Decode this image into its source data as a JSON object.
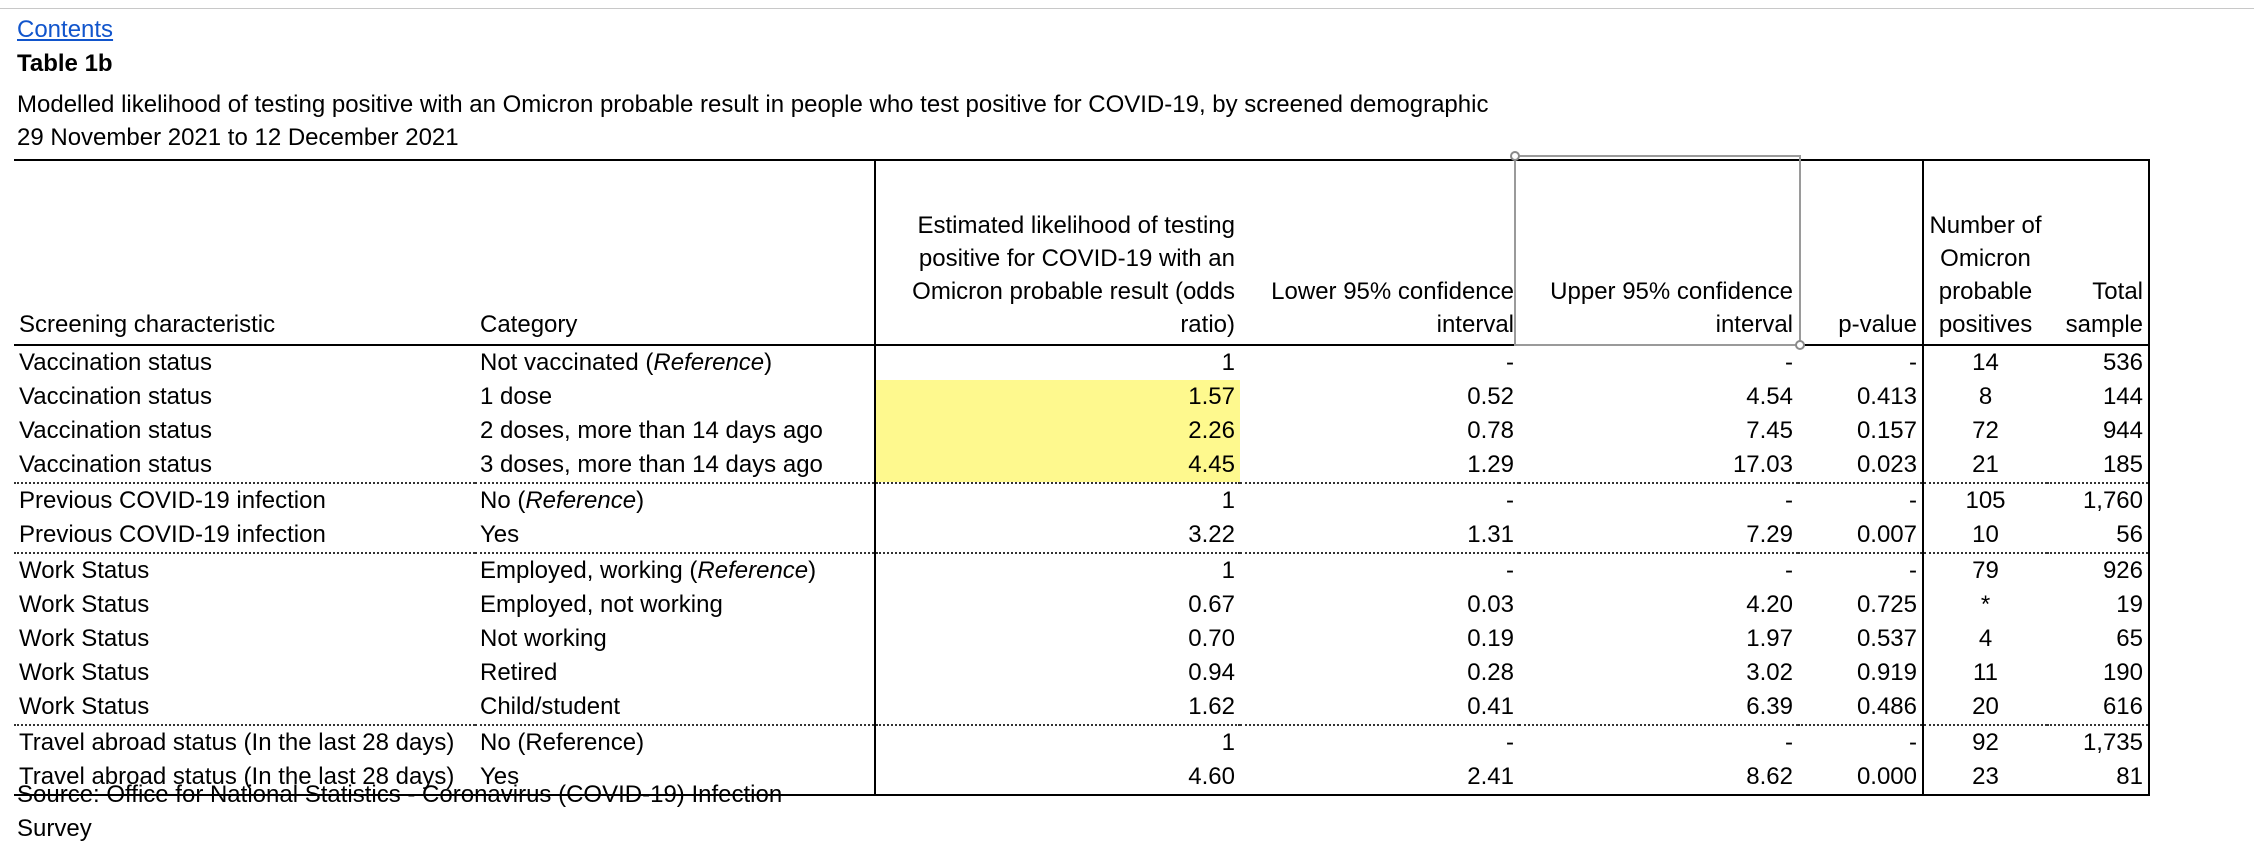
{
  "contents_link": "Contents",
  "table_title": "Table 1b",
  "description": "Modelled likelihood of testing positive with an Omicron probable result in people who test positive for COVID-19, by screened demographic",
  "period": "29 November 2021 to 12 December 2021",
  "columns": {
    "screening": "Screening characteristic",
    "category": "Category",
    "odds": "Estimated likelihood of testing positive for COVID-19 with an Omicron probable result (odds ratio)",
    "lower": "Lower 95% confidence interval",
    "upper": "Upper 95% confidence interval",
    "pvalue": "p-value",
    "positives": "Number of Omicron probable positives",
    "total": "Total sample"
  },
  "reference_label": "Reference",
  "rows": [
    {
      "screening": "Vaccination status",
      "category": "Not vaccinated (",
      "category_ref": "Reference",
      "category_end": ")",
      "odds": "1",
      "lower": "-",
      "upper": "-",
      "pvalue": "-",
      "positives": "14",
      "total": "536"
    },
    {
      "screening": "Vaccination status",
      "category": "1 dose",
      "odds": "1.57",
      "lower": "0.52",
      "upper": "4.54",
      "pvalue": "0.413",
      "positives": "8",
      "total": "144"
    },
    {
      "screening": "Vaccination status",
      "category": "2 doses, more than 14 days ago",
      "odds": "2.26",
      "lower": "0.78",
      "upper": "7.45",
      "pvalue": "0.157",
      "positives": "72",
      "total": "944"
    },
    {
      "screening": "Vaccination status",
      "category": "3 doses, more than 14 days ago",
      "odds": "4.45",
      "lower": "1.29",
      "upper": "17.03",
      "pvalue": "0.023",
      "positives": "21",
      "total": "185"
    },
    {
      "screening": "Previous COVID-19 infection",
      "category": "No (",
      "category_ref": "Reference",
      "category_end": ")",
      "odds": "1",
      "lower": "-",
      "upper": "-",
      "pvalue": "-",
      "positives": "105",
      "total": "1,760"
    },
    {
      "screening": "Previous COVID-19 infection",
      "category": "Yes",
      "odds": "3.22",
      "lower": "1.31",
      "upper": "7.29",
      "pvalue": "0.007",
      "positives": "10",
      "total": "56"
    },
    {
      "screening": "Work Status",
      "category": "Employed, working (",
      "category_ref": "Reference",
      "category_end": ")",
      "odds": "1",
      "lower": "-",
      "upper": "-",
      "pvalue": "-",
      "positives": "79",
      "total": "926"
    },
    {
      "screening": "Work Status",
      "category": "Employed, not working",
      "odds": "0.67",
      "lower": "0.03",
      "upper": "4.20",
      "pvalue": "0.725",
      "positives": "*",
      "total": "19"
    },
    {
      "screening": "Work Status",
      "category": "Not working",
      "odds": "0.70",
      "lower": "0.19",
      "upper": "1.97",
      "pvalue": "0.537",
      "positives": "4",
      "total": "65"
    },
    {
      "screening": "Work Status",
      "category": "Retired",
      "odds": "0.94",
      "lower": "0.28",
      "upper": "3.02",
      "pvalue": "0.919",
      "positives": "11",
      "total": "190"
    },
    {
      "screening": "Work Status",
      "category": "Child/student",
      "odds": "1.62",
      "lower": "0.41",
      "upper": "6.39",
      "pvalue": "0.486",
      "positives": "20",
      "total": "616"
    },
    {
      "screening": "Travel abroad status (In the last 28 days)",
      "category": "No (Reference)",
      "odds": "1",
      "lower": "-",
      "upper": "-",
      "pvalue": "-",
      "positives": "92",
      "total": "1,735"
    },
    {
      "screening": "Travel abroad status (In the last 28 days)",
      "category": "Yes",
      "odds": "4.60",
      "lower": "2.41",
      "upper": "8.62",
      "pvalue": "0.000",
      "positives": "23",
      "total": "81"
    }
  ],
  "source": "Source: Office for National Statistics - Coronavirus (COVID-19) Infection Survey",
  "colors": {
    "highlight": "#fef98e",
    "link": "#1155cc",
    "border": "#000000"
  }
}
